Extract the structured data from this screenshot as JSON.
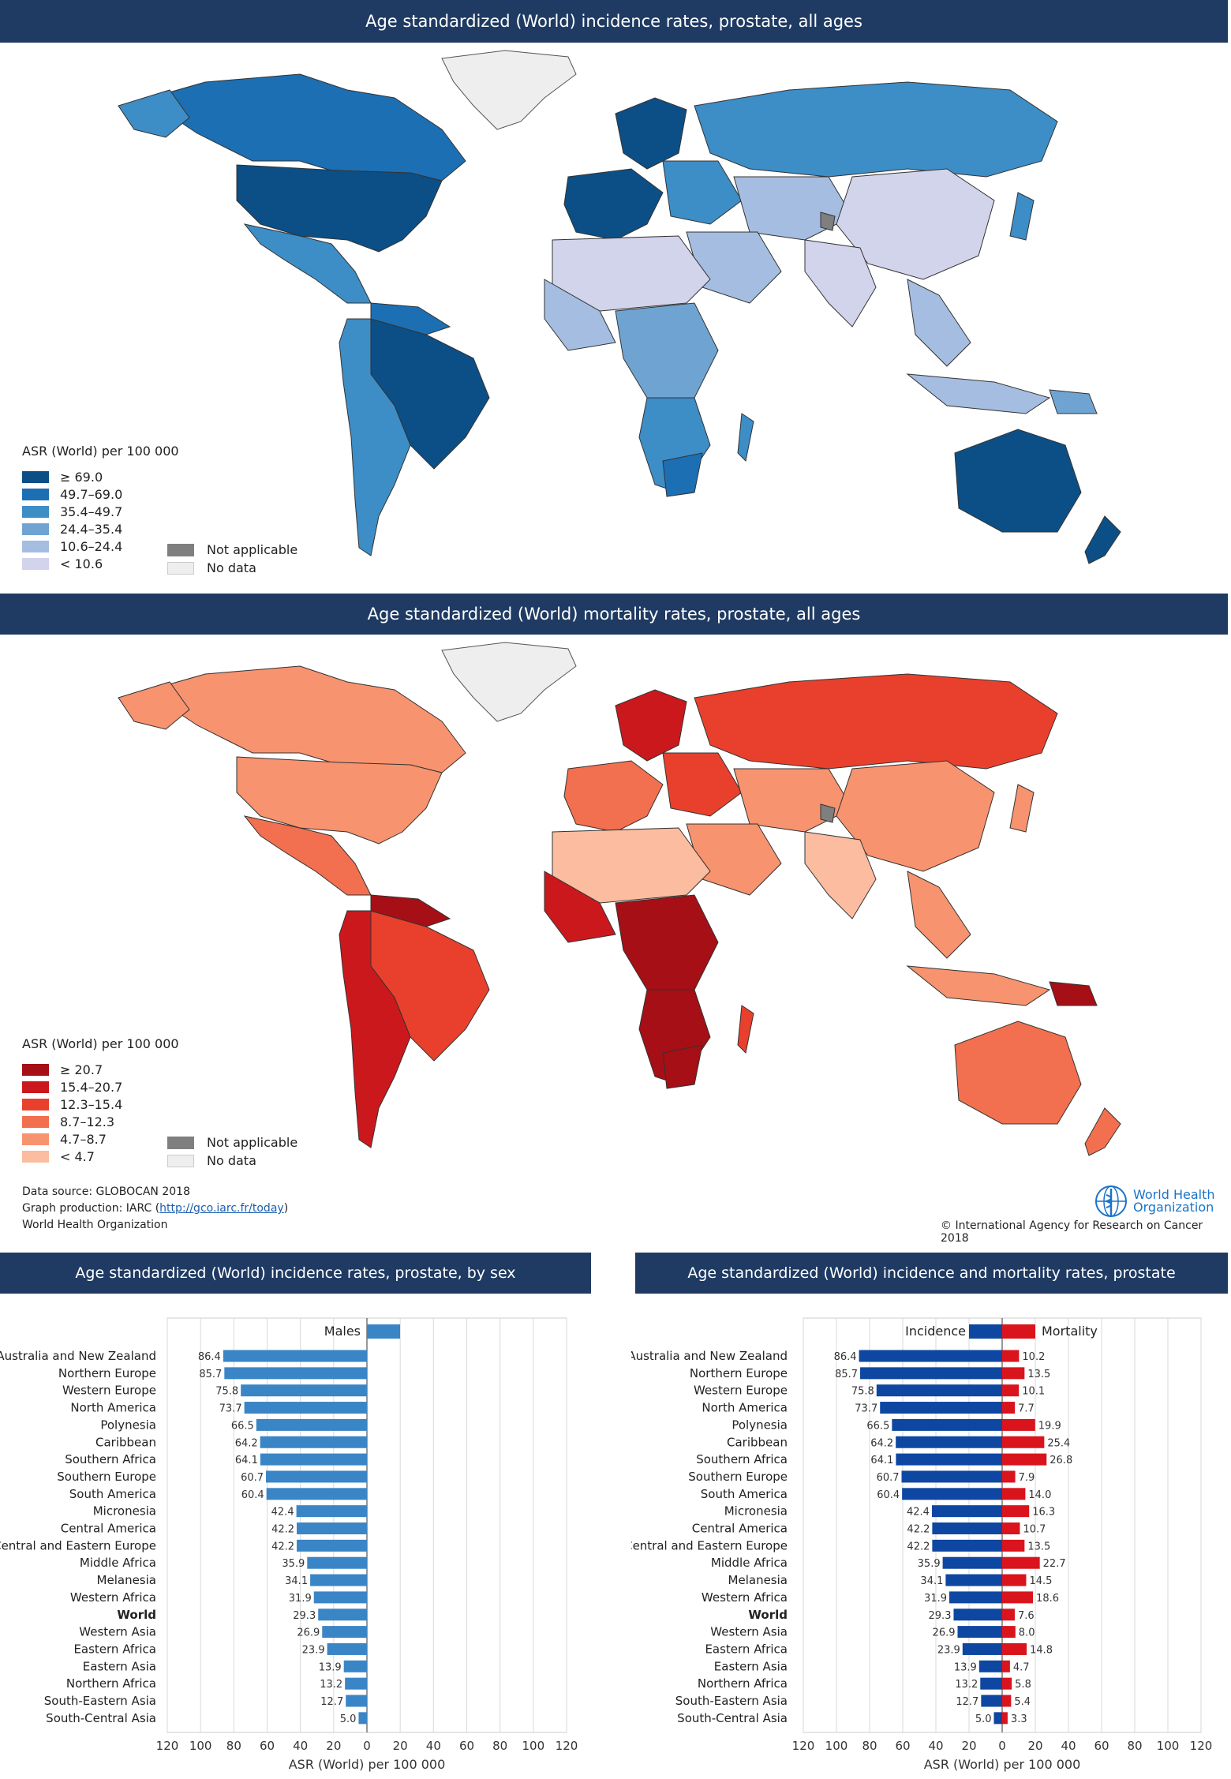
{
  "incidence_map": {
    "title": "Age standardized (World) incidence rates, prostate, all ages",
    "legend_title": "ASR (World) per 100 000",
    "legend": [
      {
        "label": "≥ 69.0",
        "color": "#0b4f86"
      },
      {
        "label": "49.7–69.0",
        "color": "#1c6fb3"
      },
      {
        "label": "35.4–49.7",
        "color": "#3d8dc6"
      },
      {
        "label": "24.4–35.4",
        "color": "#6fa4d2"
      },
      {
        "label": "10.6–24.4",
        "color": "#a5bde0"
      },
      {
        "label": "< 10.6",
        "color": "#d2d4ec"
      }
    ],
    "not_applicable": "Not applicable",
    "no_data": "No data",
    "not_applicable_color": "#7f7f7f",
    "no_data_color": "#eeeeee"
  },
  "mortality_map": {
    "title": "Age standardized (World) mortality rates, prostate, all ages",
    "legend_title": "ASR (World) per 100 000",
    "legend": [
      {
        "label": "≥ 20.7",
        "color": "#a50f15"
      },
      {
        "label": "15.4–20.7",
        "color": "#cb181d"
      },
      {
        "label": "12.3–15.4",
        "color": "#e8402c"
      },
      {
        "label": "8.7–12.3",
        "color": "#f2704f"
      },
      {
        "label": "4.7–8.7",
        "color": "#f7936f"
      },
      {
        "label": "< 4.7",
        "color": "#fbbca0"
      }
    ],
    "not_applicable": "Not applicable",
    "no_data": "No data",
    "not_applicable_color": "#7f7f7f",
    "no_data_color": "#eeeeee"
  },
  "footer": {
    "data_source": "Data source: GLOBOCAN 2018",
    "graph_production_prefix": "Graph production: IARC (",
    "graph_production_link": "http://gco.iarc.fr/today",
    "graph_production_suffix": ")",
    "organization": "World Health Organization",
    "who_line1": "World Health",
    "who_line2": "Organization",
    "copyright": "© International Agency for Research on Cancer 2018"
  },
  "chart_data": [
    {
      "type": "bar",
      "title": "Age standardized (World) incidence rates, prostate, by sex",
      "legend": [
        "Males"
      ],
      "xlabel": "ASR (World) per 100 000",
      "xticks": [
        120,
        100,
        80,
        60,
        40,
        20,
        0,
        20,
        40,
        60,
        80,
        100,
        120
      ],
      "xlim": [
        -120,
        120
      ],
      "bar_color": "#3a85c6",
      "categories": [
        "Australia and New Zealand",
        "Northern Europe",
        "Western Europe",
        "North America",
        "Polynesia",
        "Caribbean",
        "Southern Africa",
        "Southern Europe",
        "South America",
        "Micronesia",
        "Central America",
        "Central and Eastern Europe",
        "Middle Africa",
        "Melanesia",
        "Western Africa",
        "World",
        "Western Asia",
        "Eastern Africa",
        "Eastern Asia",
        "Northern Africa",
        "South-Eastern Asia",
        "South-Central Asia"
      ],
      "series": [
        {
          "name": "Males",
          "values": [
            86.4,
            85.7,
            75.8,
            73.7,
            66.5,
            64.2,
            64.1,
            60.7,
            60.4,
            42.4,
            42.2,
            42.2,
            35.9,
            34.1,
            31.9,
            29.3,
            26.9,
            23.9,
            13.9,
            13.2,
            12.7,
            5.0
          ]
        }
      ],
      "value_labels": [
        "86.4",
        "85.7",
        "75.8",
        "73.7",
        "66.5",
        "64.2",
        "64.1",
        "60.7",
        "60.4",
        "42.4",
        "42.2",
        "42.2",
        "35.9",
        "34.1",
        "31.9",
        "29.3",
        "26.9",
        "23.9",
        "13.9",
        "13.2",
        "12.7",
        "5.0"
      ]
    },
    {
      "type": "bar",
      "title": "Age standardized (World) incidence and mortality rates, prostate",
      "legend": [
        "Incidence",
        "Mortality"
      ],
      "xlabel": "ASR (World) per 100 000",
      "xticks": [
        120,
        100,
        80,
        60,
        40,
        20,
        0,
        20,
        40,
        60,
        80,
        100,
        120
      ],
      "xlim": [
        -120,
        120
      ],
      "incidence_color": "#0d47a1",
      "mortality_color": "#d9141c",
      "categories": [
        "Australia and New Zealand",
        "Northern Europe",
        "Western Europe",
        "North America",
        "Polynesia",
        "Caribbean",
        "Southern Africa",
        "Southern Europe",
        "South America",
        "Micronesia",
        "Central America",
        "Central and Eastern Europe",
        "Middle Africa",
        "Melanesia",
        "Western Africa",
        "World",
        "Western Asia",
        "Eastern Africa",
        "Eastern Asia",
        "Northern Africa",
        "South-Eastern Asia",
        "South-Central Asia"
      ],
      "series": [
        {
          "name": "Incidence",
          "values": [
            86.4,
            85.7,
            75.8,
            73.7,
            66.5,
            64.2,
            64.1,
            60.7,
            60.4,
            42.4,
            42.2,
            42.2,
            35.9,
            34.1,
            31.9,
            29.3,
            26.9,
            23.9,
            13.9,
            13.2,
            12.7,
            5.0
          ]
        },
        {
          "name": "Mortality",
          "values": [
            10.2,
            13.5,
            10.1,
            7.7,
            19.9,
            25.4,
            26.8,
            7.9,
            14.0,
            16.3,
            10.7,
            13.5,
            22.7,
            14.5,
            18.6,
            7.6,
            8.0,
            14.8,
            4.7,
            5.8,
            5.4,
            3.3
          ]
        }
      ],
      "incidence_labels": [
        "86.4",
        "85.7",
        "75.8",
        "73.7",
        "66.5",
        "64.2",
        "64.1",
        "60.7",
        "60.4",
        "42.4",
        "42.2",
        "42.2",
        "35.9",
        "34.1",
        "31.9",
        "29.3",
        "26.9",
        "23.9",
        "13.9",
        "13.2",
        "12.7",
        "5.0"
      ],
      "mortality_labels": [
        "10.2",
        "13.5",
        "10.1",
        "7.7",
        "19.9",
        "25.4",
        "26.8",
        "7.9",
        "14.0",
        "16.3",
        "10.7",
        "13.5",
        "22.7",
        "14.5",
        "18.6",
        "7.6",
        "8.0",
        "14.8",
        "4.7",
        "5.8",
        "5.4",
        "3.3"
      ]
    }
  ]
}
